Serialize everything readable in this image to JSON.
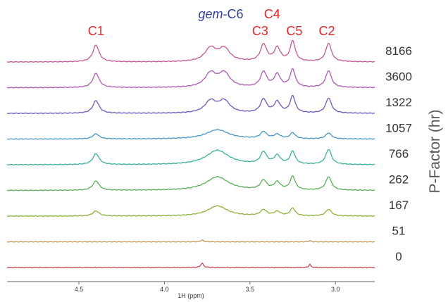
{
  "chart_data": {
    "type": "line",
    "title": "",
    "xlabel": "1H (ppm)",
    "ylabel": "P-Factor (hr)",
    "xlim": [
      4.92,
      2.77
    ],
    "x_reversed": true,
    "x_ticks": [
      {
        "value": 4.5,
        "label": "4.5"
      },
      {
        "value": 4.0,
        "label": "4.0"
      },
      {
        "value": 3.5,
        "label": "3.5"
      },
      {
        "value": 3.0,
        "label": "3.0"
      }
    ],
    "peak_labels": [
      {
        "id": "C1",
        "parts": [
          {
            "text": "C1",
            "italic": false
          }
        ],
        "ppm": 4.4,
        "row": 2,
        "color": "#e8262a"
      },
      {
        "id": "gem-C6",
        "parts": [
          {
            "text": "gem",
            "italic": true
          },
          {
            "text": "-C6",
            "italic": false
          }
        ],
        "ppm": 3.67,
        "row": 1,
        "color": "#2f3fa0"
      },
      {
        "id": "C4",
        "parts": [
          {
            "text": "C4",
            "italic": false
          }
        ],
        "ppm": 3.37,
        "row": 1,
        "color": "#e8262a"
      },
      {
        "id": "C3",
        "parts": [
          {
            "text": "C3",
            "italic": false
          }
        ],
        "ppm": 3.44,
        "row": 2,
        "color": "#e8262a"
      },
      {
        "id": "C5",
        "parts": [
          {
            "text": "C5",
            "italic": false
          }
        ],
        "ppm": 3.24,
        "row": 2,
        "color": "#e8262a"
      },
      {
        "id": "C2",
        "parts": [
          {
            "text": "C2",
            "italic": false
          }
        ],
        "ppm": 3.05,
        "row": 2,
        "color": "#e8262a"
      }
    ],
    "series": [
      {
        "name": "8166",
        "color": "#c25b98",
        "baseline": 0.0,
        "peaks": [
          [
            4.4,
            0.022,
            1.0
          ],
          [
            3.73,
            0.04,
            0.78
          ],
          [
            3.65,
            0.04,
            0.75
          ],
          [
            3.42,
            0.022,
            1.0
          ],
          [
            3.34,
            0.022,
            0.8
          ],
          [
            3.25,
            0.018,
            1.2
          ],
          [
            3.04,
            0.02,
            1.1
          ]
        ]
      },
      {
        "name": "3600",
        "color": "#b05cb5",
        "baseline": 0.0,
        "peaks": [
          [
            4.4,
            0.022,
            0.85
          ],
          [
            3.73,
            0.04,
            0.82
          ],
          [
            3.65,
            0.04,
            0.82
          ],
          [
            3.42,
            0.022,
            0.9
          ],
          [
            3.34,
            0.022,
            0.75
          ],
          [
            3.25,
            0.018,
            1.05
          ],
          [
            3.04,
            0.02,
            1.0
          ]
        ]
      },
      {
        "name": "1322",
        "color": "#6a5cc0",
        "baseline": 0.0,
        "peaks": [
          [
            4.4,
            0.022,
            0.75
          ],
          [
            3.73,
            0.04,
            0.7
          ],
          [
            3.65,
            0.04,
            0.7
          ],
          [
            3.42,
            0.022,
            0.8
          ],
          [
            3.34,
            0.022,
            0.65
          ],
          [
            3.25,
            0.018,
            1.0
          ],
          [
            3.04,
            0.02,
            0.9
          ]
        ]
      },
      {
        "name": "1057",
        "color": "#4a98c8",
        "baseline": 0.0,
        "peaks": [
          [
            4.4,
            0.022,
            0.3
          ],
          [
            3.69,
            0.08,
            0.55
          ],
          [
            3.42,
            0.022,
            0.4
          ],
          [
            3.34,
            0.022,
            0.25
          ],
          [
            3.25,
            0.018,
            0.35
          ],
          [
            3.04,
            0.02,
            0.35
          ]
        ]
      },
      {
        "name": "766",
        "color": "#3eb29a",
        "baseline": 0.0,
        "peaks": [
          [
            4.4,
            0.022,
            0.65
          ],
          [
            3.69,
            0.08,
            0.85
          ],
          [
            3.42,
            0.022,
            0.7
          ],
          [
            3.34,
            0.022,
            0.5
          ],
          [
            3.25,
            0.018,
            0.75
          ],
          [
            3.04,
            0.02,
            0.9
          ]
        ]
      },
      {
        "name": "262",
        "color": "#5cb05a",
        "baseline": 0.0,
        "peaks": [
          [
            4.4,
            0.022,
            0.55
          ],
          [
            3.69,
            0.08,
            0.8
          ],
          [
            3.42,
            0.022,
            0.55
          ],
          [
            3.34,
            0.022,
            0.45
          ],
          [
            3.25,
            0.018,
            0.8
          ],
          [
            3.04,
            0.02,
            0.8
          ]
        ]
      },
      {
        "name": "167",
        "color": "#8fb23c",
        "baseline": 0.0,
        "peaks": [
          [
            4.4,
            0.022,
            0.3
          ],
          [
            3.69,
            0.07,
            0.6
          ],
          [
            3.42,
            0.022,
            0.35
          ],
          [
            3.34,
            0.022,
            0.25
          ],
          [
            3.25,
            0.018,
            0.45
          ],
          [
            3.04,
            0.02,
            0.4
          ]
        ]
      },
      {
        "name": "51",
        "color": "#c79a5a",
        "baseline": 0.0,
        "peaks": [
          [
            3.78,
            0.01,
            0.1
          ],
          [
            3.15,
            0.006,
            0.08
          ]
        ]
      },
      {
        "name": "0",
        "color": "#c44a55",
        "baseline": 0.0,
        "peaks": [
          [
            3.78,
            0.01,
            0.25
          ],
          [
            3.15,
            0.006,
            0.2
          ]
        ]
      }
    ]
  }
}
